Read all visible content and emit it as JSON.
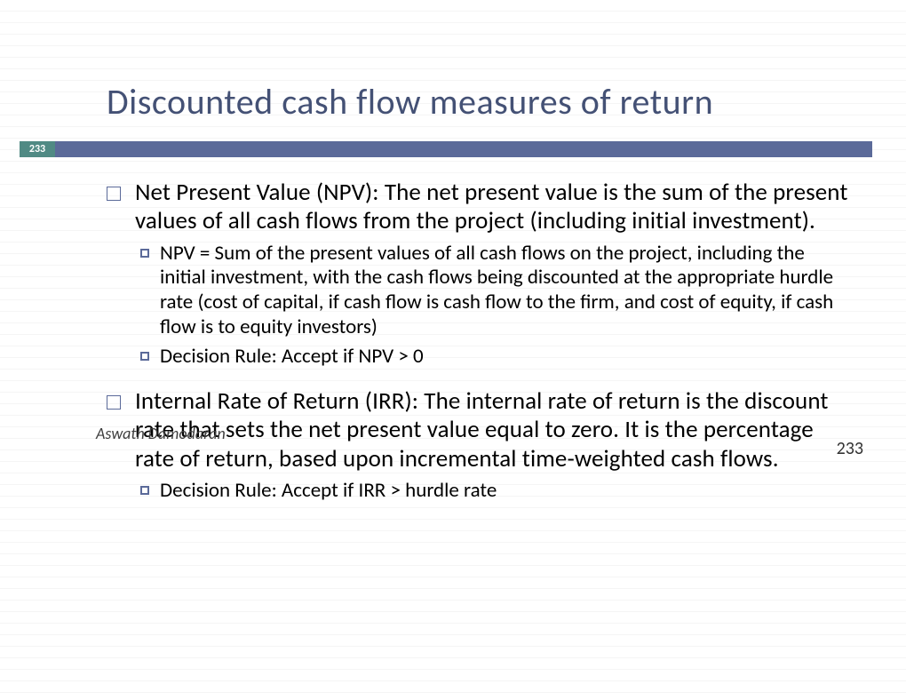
{
  "title": "Discounted cash flow measures of return",
  "page_badge": "233",
  "colors": {
    "title_color": "#445175",
    "badge_bg": "#508a84",
    "bar_bg": "#5b6a99",
    "text_color": "#000000",
    "stripe_light": "#ffffff",
    "stripe_dark": "#f5f5f5"
  },
  "bullets": [
    {
      "level": 1,
      "text": "Net Present Value (NPV): The net present value is the sum of the present values of all cash flows from the project (including initial investment)."
    },
    {
      "level": 2,
      "text": "NPV = Sum of the present values of all cash flows on the project, including the initial investment, with the cash flows being discounted at the appropriate hurdle rate (cost of capital, if cash flow is cash flow to the firm, and cost of equity, if cash flow is to equity investors)"
    },
    {
      "level": 2,
      "text": "Decision Rule: Accept if NPV > 0"
    },
    {
      "level": 1,
      "text": "Internal Rate of Return (IRR): The internal rate of return is the discount rate that sets the net present value equal to zero. It is the percentage  rate of return, based upon incremental time-weighted cash flows."
    },
    {
      "level": 2,
      "text": "Decision Rule: Accept if IRR > hurdle rate"
    }
  ],
  "author": "Aswath Damodaran",
  "page_number": "233",
  "typography": {
    "title_fontsize": 40,
    "l1_fontsize": 27,
    "l2_fontsize": 23,
    "author_fontsize": 18,
    "page_num_fontsize": 20
  }
}
